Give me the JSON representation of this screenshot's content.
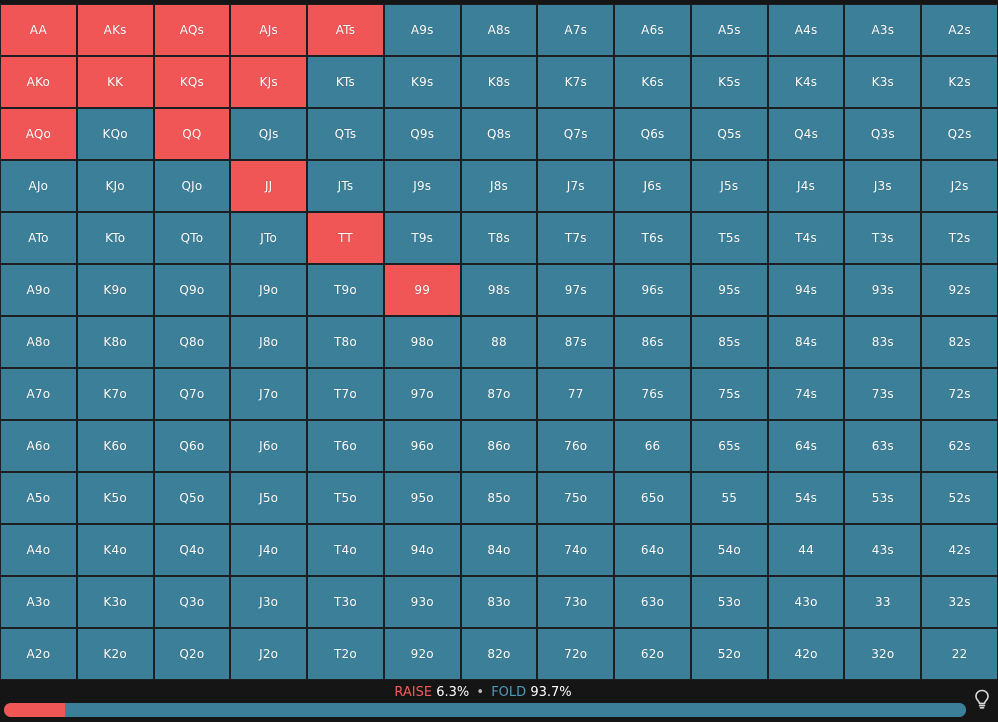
{
  "colors": {
    "raise": "#f05656",
    "fold": "#3c7f98",
    "background": "#151515"
  },
  "hands": [
    [
      "AA",
      "AKs",
      "AQs",
      "AJs",
      "ATs",
      "A9s",
      "A8s",
      "A7s",
      "A6s",
      "A5s",
      "A4s",
      "A3s",
      "A2s"
    ],
    [
      "AKo",
      "KK",
      "KQs",
      "KJs",
      "KTs",
      "K9s",
      "K8s",
      "K7s",
      "K6s",
      "K5s",
      "K4s",
      "K3s",
      "K2s"
    ],
    [
      "AQo",
      "KQo",
      "QQ",
      "QJs",
      "QTs",
      "Q9s",
      "Q8s",
      "Q7s",
      "Q6s",
      "Q5s",
      "Q4s",
      "Q3s",
      "Q2s"
    ],
    [
      "AJo",
      "KJo",
      "QJo",
      "JJ",
      "JTs",
      "J9s",
      "J8s",
      "J7s",
      "J6s",
      "J5s",
      "J4s",
      "J3s",
      "J2s"
    ],
    [
      "ATo",
      "KTo",
      "QTo",
      "JTo",
      "TT",
      "T9s",
      "T8s",
      "T7s",
      "T6s",
      "T5s",
      "T4s",
      "T3s",
      "T2s"
    ],
    [
      "A9o",
      "K9o",
      "Q9o",
      "J9o",
      "T9o",
      "99",
      "98s",
      "97s",
      "96s",
      "95s",
      "94s",
      "93s",
      "92s"
    ],
    [
      "A8o",
      "K8o",
      "Q8o",
      "J8o",
      "T8o",
      "98o",
      "88",
      "87s",
      "86s",
      "85s",
      "84s",
      "83s",
      "82s"
    ],
    [
      "A7o",
      "K7o",
      "Q7o",
      "J7o",
      "T7o",
      "97o",
      "87o",
      "77",
      "76s",
      "75s",
      "74s",
      "73s",
      "72s"
    ],
    [
      "A6o",
      "K6o",
      "Q6o",
      "J6o",
      "T6o",
      "96o",
      "86o",
      "76o",
      "66",
      "65s",
      "64s",
      "63s",
      "62s"
    ],
    [
      "A5o",
      "K5o",
      "Q5o",
      "J5o",
      "T5o",
      "95o",
      "85o",
      "75o",
      "65o",
      "55",
      "54s",
      "53s",
      "52s"
    ],
    [
      "A4o",
      "K4o",
      "Q4o",
      "J4o",
      "T4o",
      "94o",
      "84o",
      "74o",
      "64o",
      "54o",
      "44",
      "43s",
      "42s"
    ],
    [
      "A3o",
      "K3o",
      "Q3o",
      "J3o",
      "T3o",
      "93o",
      "83o",
      "73o",
      "63o",
      "53o",
      "43o",
      "33",
      "32s"
    ],
    [
      "A2o",
      "K2o",
      "Q2o",
      "J2o",
      "T2o",
      "92o",
      "82o",
      "72o",
      "62o",
      "52o",
      "42o",
      "32o",
      "22"
    ]
  ],
  "raise_hands": [
    "AA",
    "AKs",
    "AQs",
    "AJs",
    "ATs",
    "AKo",
    "KK",
    "KQs",
    "KJs",
    "AQo",
    "QQ",
    "JJ",
    "TT",
    "99"
  ],
  "summary": {
    "raise_label": "RAISE",
    "raise_pct": "6.3%",
    "separator": "•",
    "fold_label": "FOLD",
    "fold_pct": "93.7%",
    "raise_fraction": 0.063
  },
  "hint_icon": "lightbulb-icon"
}
